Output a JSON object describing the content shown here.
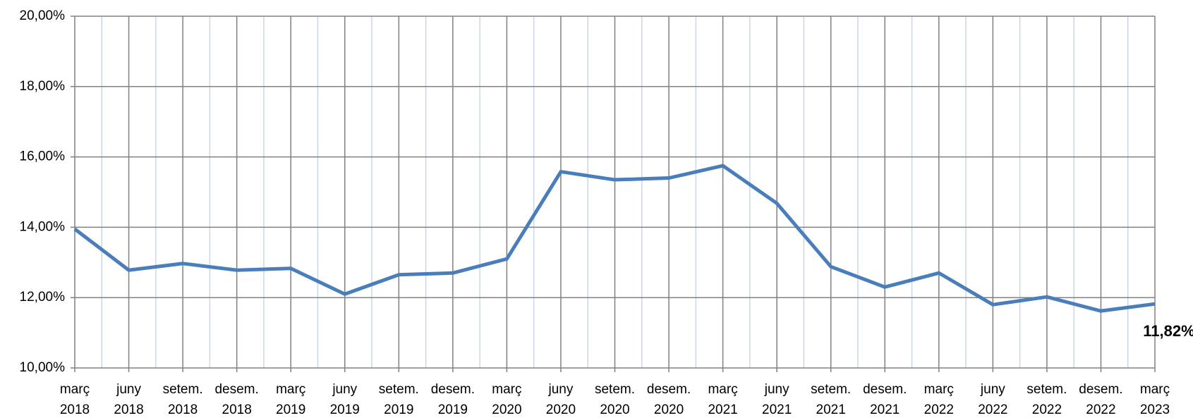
{
  "chart_data": {
    "type": "line",
    "categories": [
      "març 2018",
      "juny 2018",
      "setem. 2018",
      "desem. 2018",
      "març 2019",
      "juny 2019",
      "setem. 2019",
      "desem. 2019",
      "març 2020",
      "juny 2020",
      "setem. 2020",
      "desem. 2020",
      "març 2021",
      "juny 2021",
      "setem. 2021",
      "desem. 2021",
      "març 2022",
      "juny 2022",
      "setem. 2022",
      "desem. 2022",
      "març 2023"
    ],
    "series": [
      {
        "color": "#4a7ebb",
        "values": [
          13.95,
          12.78,
          12.97,
          12.78,
          12.83,
          12.1,
          12.65,
          12.7,
          13.1,
          15.58,
          15.35,
          15.4,
          15.75,
          14.68,
          12.88,
          12.3,
          12.7,
          11.8,
          12.02,
          11.62,
          11.82
        ],
        "value_labels": [
          null,
          null,
          null,
          null,
          null,
          null,
          null,
          null,
          null,
          null,
          null,
          null,
          null,
          null,
          null,
          null,
          null,
          null,
          null,
          null,
          "11,82%"
        ]
      }
    ],
    "ylim": [
      10,
      20
    ],
    "yticks": [
      {
        "value": 10,
        "label": "10,00%"
      },
      {
        "value": 12,
        "label": "12,00%"
      },
      {
        "value": 14,
        "label": "14,00%"
      },
      {
        "value": 16,
        "label": "16,00%"
      },
      {
        "value": 18,
        "label": "18,00%"
      },
      {
        "value": 20,
        "label": "20,00%"
      }
    ],
    "grid": true
  }
}
